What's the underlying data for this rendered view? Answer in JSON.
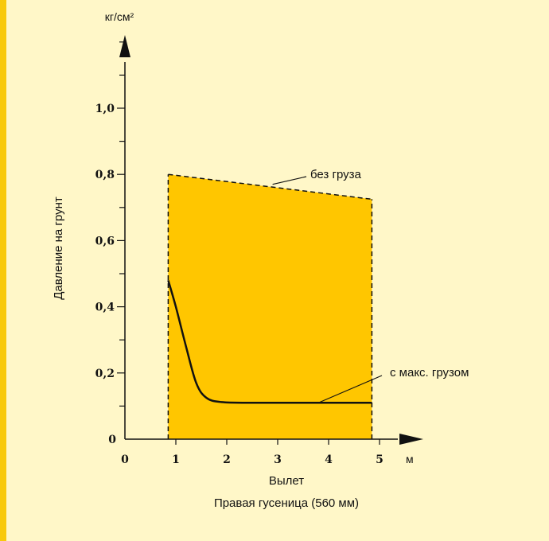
{
  "colors": {
    "background": "#fff7c8",
    "accent_strip": "#f8c90b",
    "fill_area": "#ffc600",
    "line": "#111111"
  },
  "chart_data": {
    "type": "line",
    "title": "",
    "xlabel": "Вылет",
    "ylabel": "Давление на грунт",
    "x_unit": "м",
    "y_unit": "кг/см²",
    "caption": "Правая гусеница (560 мм)",
    "xlim": [
      0,
      5.5
    ],
    "ylim": [
      0,
      1.2
    ],
    "x_ticks": [
      0,
      1,
      2,
      3,
      4,
      5
    ],
    "x_tick_labels": [
      "0",
      "1",
      "2",
      "3",
      "4",
      "5"
    ],
    "y_ticks": [
      0,
      0.2,
      0.4,
      0.6,
      0.8,
      1.0
    ],
    "y_tick_labels": [
      "0",
      "0,2",
      "0,4",
      "0,6",
      "0,8",
      "1,0"
    ],
    "y_minor_step": 0.1,
    "region": {
      "x_range": [
        0.85,
        4.85
      ],
      "upper": [
        [
          0.85,
          0.8
        ],
        [
          4.85,
          0.725
        ]
      ]
    },
    "series": [
      {
        "name": "без груза",
        "style": "dashed",
        "points": [
          [
            0.85,
            0.8
          ],
          [
            4.85,
            0.725
          ]
        ]
      },
      {
        "name": "с макс. грузом",
        "style": "solid",
        "points": [
          [
            0.85,
            0.48
          ],
          [
            1.0,
            0.4
          ],
          [
            1.2,
            0.28
          ],
          [
            1.4,
            0.17
          ],
          [
            1.6,
            0.125
          ],
          [
            1.9,
            0.112
          ],
          [
            2.5,
            0.11
          ],
          [
            3.5,
            0.11
          ],
          [
            4.85,
            0.11
          ]
        ]
      }
    ],
    "annotations": [
      {
        "text": "без груза",
        "target": [
          2.9,
          0.77
        ]
      },
      {
        "text": "с макс. грузом",
        "target": [
          3.8,
          0.11
        ]
      }
    ]
  }
}
